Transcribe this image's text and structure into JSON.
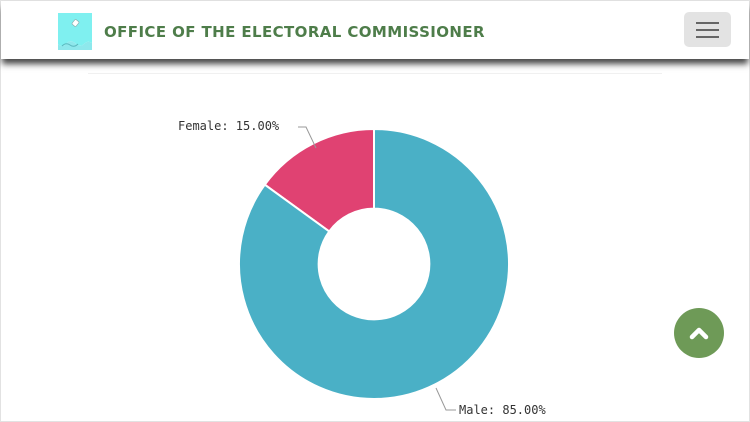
{
  "header": {
    "title": "OFFICE OF THE ELECTORAL COMMISSIONER",
    "logo_icon": "electoral-logo-icon",
    "menu_icon": "hamburger-menu-icon"
  },
  "scroll_top": {
    "icon": "chevron-up-icon"
  },
  "colors": {
    "brand_green": "#4e7d4a",
    "male": "#4ab0c6",
    "female": "#e04272",
    "scroll_button": "#6e9a57"
  },
  "chart_data": {
    "type": "pie",
    "variant": "donut",
    "title": "",
    "categories": [
      "Female",
      "Male"
    ],
    "values": [
      15.0,
      85.0
    ],
    "labels": [
      "Female: 15.00%",
      "Male: 85.00%"
    ],
    "colors": [
      "#e04272",
      "#4ab0c6"
    ],
    "legend": "none",
    "start_angle_deg": -54,
    "inner_radius_ratio": 0.41
  }
}
